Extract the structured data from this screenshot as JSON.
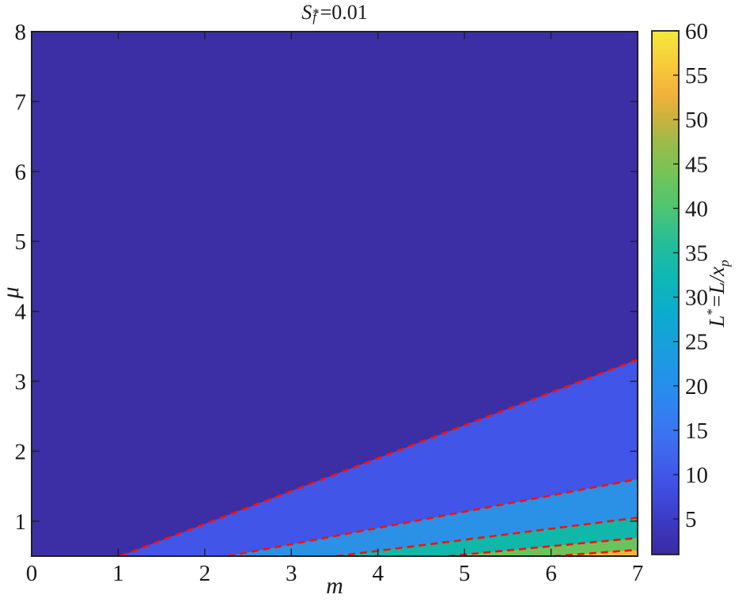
{
  "figure": {
    "background": "#ffffff",
    "axis_color": "#1f1f1f",
    "title_parts": {
      "base": "S",
      "sup": "*",
      "sub": "f",
      "rest": "=0.01"
    },
    "colorbar_label_parts": {
      "base": "L",
      "sup": "*",
      "mid": "=L/x",
      "sub": "p"
    }
  },
  "chart_data": {
    "type": "heatmap",
    "subtype": "filled_contour",
    "title": "S_f^* = 0.01",
    "xlabel": "m",
    "ylabel": "μ",
    "xlim": [
      0,
      7
    ],
    "ylim": [
      0.5,
      8
    ],
    "x_ticks": [
      0,
      1,
      2,
      3,
      4,
      5,
      6,
      7
    ],
    "y_ticks": [
      1,
      2,
      3,
      4,
      5,
      6,
      7,
      8
    ],
    "grid": false,
    "colormap": "parula",
    "contour_levels": [
      10,
      20,
      30,
      40,
      50
    ],
    "contour_line_style": {
      "color": "#ff0f05",
      "dash": "9 6",
      "width": 2.6
    },
    "contour_lines": [
      {
        "level": 10,
        "from": [
          1.02,
          0.5
        ],
        "to": [
          7,
          3.31
        ]
      },
      {
        "level": 20,
        "from": [
          2.27,
          0.5
        ],
        "to": [
          7,
          1.6
        ]
      },
      {
        "level": 30,
        "from": [
          3.52,
          0.5
        ],
        "to": [
          7,
          1.05
        ]
      },
      {
        "level": 40,
        "from": [
          4.81,
          0.5
        ],
        "to": [
          7,
          0.76
        ]
      },
      {
        "level": 50,
        "from": [
          6.03,
          0.5
        ],
        "to": [
          7,
          0.59
        ]
      }
    ],
    "bands": [
      {
        "range": "1-10",
        "color": "#3c2ea5"
      },
      {
        "range": "10-20",
        "color": "#4155e9"
      },
      {
        "range": "20-30",
        "color": "#2b91e6"
      },
      {
        "range": "30-40",
        "color": "#0fb8aa"
      },
      {
        "range": "40-50",
        "color": "#68c55c"
      },
      {
        "range": "50-60",
        "color": "#f2b63c"
      }
    ],
    "colorbar": {
      "label": "L* = L/x_p",
      "range": [
        1,
        60
      ],
      "ticks": [
        5,
        10,
        15,
        20,
        25,
        30,
        35,
        40,
        45,
        50,
        55,
        60
      ],
      "gradient_stops": [
        {
          "pos": 0.0,
          "color": "#3a2ba0"
        },
        {
          "pos": 0.07,
          "color": "#3d3cc8"
        },
        {
          "pos": 0.14,
          "color": "#4153e6"
        },
        {
          "pos": 0.22,
          "color": "#3e70f0"
        },
        {
          "pos": 0.3,
          "color": "#2b89f0"
        },
        {
          "pos": 0.38,
          "color": "#1c9be0"
        },
        {
          "pos": 0.46,
          "color": "#0cabcf"
        },
        {
          "pos": 0.53,
          "color": "#0eb7b4"
        },
        {
          "pos": 0.6,
          "color": "#27be97"
        },
        {
          "pos": 0.66,
          "color": "#4cc573"
        },
        {
          "pos": 0.72,
          "color": "#70c45a"
        },
        {
          "pos": 0.78,
          "color": "#96bd4b"
        },
        {
          "pos": 0.83,
          "color": "#c8b23f"
        },
        {
          "pos": 0.88,
          "color": "#f2b23c"
        },
        {
          "pos": 0.93,
          "color": "#f7c83a"
        },
        {
          "pos": 1.0,
          "color": "#f5e93b"
        }
      ]
    }
  }
}
